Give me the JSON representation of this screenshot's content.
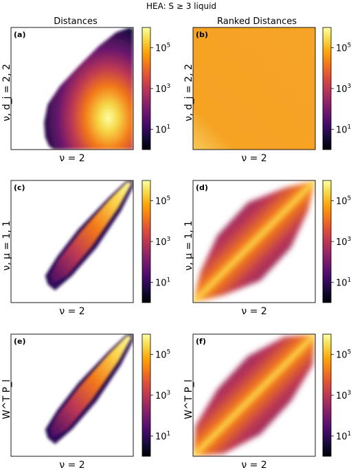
{
  "figure": {
    "suptitle": "HEA: S ≥ 3 liquid",
    "col_titles": [
      "Distances",
      "Ranked Distances"
    ]
  },
  "colorbar": {
    "ticks": [
      {
        "label_base": "10",
        "label_exp": "1",
        "value": 10
      },
      {
        "label_base": "10",
        "label_exp": "3",
        "value": 1000
      },
      {
        "label_base": "10",
        "label_exp": "5",
        "value": 100000
      }
    ],
    "log_range": [
      0,
      6
    ],
    "colormap": "inferno"
  },
  "chart_data": [
    {
      "type": "heatmap",
      "panel_label": "(a)",
      "xlabel": "ν = 2",
      "ylabel": "ν, d_j = 2, 2",
      "shape": "fan",
      "scale": "log"
    },
    {
      "type": "heatmap",
      "panel_label": "(b)",
      "xlabel": "ν = 2",
      "ylabel": "ν, d_j = 2, 2",
      "shape": "uniform",
      "scale": "log"
    },
    {
      "type": "heatmap",
      "panel_label": "(c)",
      "xlabel": "ν = 2",
      "ylabel": "ν, μ = 1, 1",
      "shape": "narrow-diagonal",
      "scale": "log"
    },
    {
      "type": "heatmap",
      "panel_label": "(d)",
      "xlabel": "ν = 2",
      "ylabel": "ν, μ = 1, 1",
      "shape": "lens-diagonal",
      "scale": "log"
    },
    {
      "type": "heatmap",
      "panel_label": "(e)",
      "xlabel": "ν = 2",
      "ylabel": "W^T P_l",
      "shape": "narrow-diagonal",
      "scale": "log"
    },
    {
      "type": "heatmap",
      "panel_label": "(f)",
      "xlabel": "ν = 2",
      "ylabel": "W^T P_l",
      "shape": "wide-diagonal",
      "scale": "log"
    }
  ]
}
